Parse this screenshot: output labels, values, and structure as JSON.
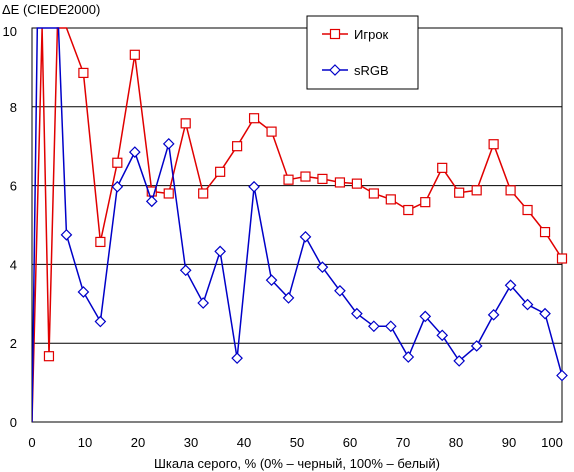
{
  "chart_data": {
    "type": "line",
    "ylabel": "ΔE (CIEDE2000)",
    "xlabel": "Шкала серого, % (0% – черный, 100% – белый)",
    "xlim": [
      0,
      100
    ],
    "ylim": [
      0,
      10
    ],
    "xticks": [
      0,
      10,
      20,
      30,
      40,
      50,
      60,
      70,
      80,
      90,
      100
    ],
    "yticks": [
      0,
      2,
      4,
      6,
      8,
      10
    ],
    "grid": "horizontal",
    "legend_position": "top-center",
    "series": [
      {
        "name": "Игрок",
        "color": "#e00000",
        "marker": "square",
        "points": [
          [
            0,
            0
          ],
          [
            1.9,
            10
          ],
          [
            3.2,
            1.67
          ],
          [
            4.8,
            10
          ],
          [
            6.5,
            10
          ],
          [
            9.7,
            8.86
          ],
          [
            12.9,
            4.57
          ],
          [
            16.1,
            6.58
          ],
          [
            19.4,
            9.32
          ],
          [
            22.6,
            5.85
          ],
          [
            25.8,
            5.8
          ],
          [
            29.0,
            7.58
          ],
          [
            32.3,
            5.8
          ],
          [
            35.5,
            6.35
          ],
          [
            38.7,
            7.0
          ],
          [
            41.9,
            7.71
          ],
          [
            45.2,
            7.37
          ],
          [
            48.4,
            6.15
          ],
          [
            51.6,
            6.23
          ],
          [
            54.8,
            6.17
          ],
          [
            58.1,
            6.08
          ],
          [
            61.3,
            6.05
          ],
          [
            64.5,
            5.8
          ],
          [
            67.7,
            5.65
          ],
          [
            71.0,
            5.38
          ],
          [
            74.2,
            5.58
          ],
          [
            77.4,
            6.45
          ],
          [
            80.6,
            5.82
          ],
          [
            83.9,
            5.88
          ],
          [
            87.1,
            7.05
          ],
          [
            90.3,
            5.88
          ],
          [
            93.5,
            5.38
          ],
          [
            96.8,
            4.82
          ],
          [
            100,
            4.15
          ]
        ]
      },
      {
        "name": "sRGB",
        "color": "#0000c8",
        "marker": "diamond",
        "points": [
          [
            0,
            0
          ],
          [
            1.0,
            10
          ],
          [
            5.0,
            10
          ],
          [
            6.5,
            4.75
          ],
          [
            9.7,
            3.3
          ],
          [
            12.9,
            2.55
          ],
          [
            16.1,
            5.97
          ],
          [
            19.4,
            6.85
          ],
          [
            22.6,
            5.6
          ],
          [
            25.8,
            7.06
          ],
          [
            29.0,
            3.85
          ],
          [
            32.3,
            3.02
          ],
          [
            35.5,
            4.33
          ],
          [
            38.7,
            1.62
          ],
          [
            41.9,
            5.97
          ],
          [
            45.2,
            3.6
          ],
          [
            48.4,
            3.15
          ],
          [
            51.6,
            4.7
          ],
          [
            54.8,
            3.93
          ],
          [
            58.1,
            3.33
          ],
          [
            61.3,
            2.75
          ],
          [
            64.5,
            2.43
          ],
          [
            67.7,
            2.43
          ],
          [
            71.0,
            1.65
          ],
          [
            74.2,
            2.68
          ],
          [
            77.4,
            2.2
          ],
          [
            80.6,
            1.55
          ],
          [
            83.9,
            1.93
          ],
          [
            87.1,
            2.72
          ],
          [
            90.3,
            3.47
          ],
          [
            93.5,
            2.98
          ],
          [
            96.8,
            2.75
          ],
          [
            100,
            1.18
          ]
        ]
      }
    ]
  }
}
